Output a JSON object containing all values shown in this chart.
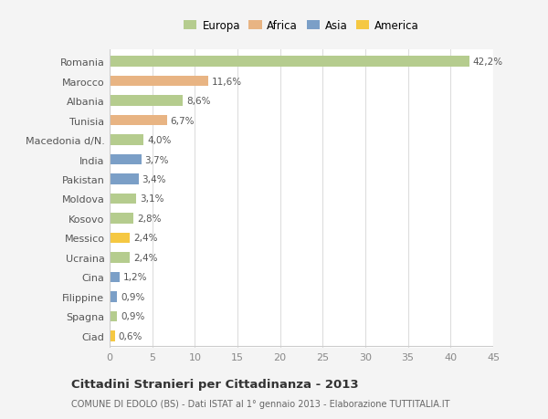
{
  "countries": [
    "Romania",
    "Marocco",
    "Albania",
    "Tunisia",
    "Macedonia d/N.",
    "India",
    "Pakistan",
    "Moldova",
    "Kosovo",
    "Messico",
    "Ucraina",
    "Cina",
    "Filippine",
    "Spagna",
    "Ciad"
  ],
  "values": [
    42.2,
    11.6,
    8.6,
    6.7,
    4.0,
    3.7,
    3.4,
    3.1,
    2.8,
    2.4,
    2.4,
    1.2,
    0.9,
    0.9,
    0.6
  ],
  "labels": [
    "42,2%",
    "11,6%",
    "8,6%",
    "6,7%",
    "4,0%",
    "3,7%",
    "3,4%",
    "3,1%",
    "2,8%",
    "2,4%",
    "2,4%",
    "1,2%",
    "0,9%",
    "0,9%",
    "0,6%"
  ],
  "colors": [
    "#b5cc8e",
    "#e8b483",
    "#b5cc8e",
    "#e8b483",
    "#b5cc8e",
    "#7b9fc7",
    "#7b9fc7",
    "#b5cc8e",
    "#b5cc8e",
    "#f5c842",
    "#b5cc8e",
    "#7b9fc7",
    "#7b9fc7",
    "#b5cc8e",
    "#f5c842"
  ],
  "legend_labels": [
    "Europa",
    "Africa",
    "Asia",
    "America"
  ],
  "legend_colors": [
    "#b5cc8e",
    "#e8b483",
    "#7b9fc7",
    "#f5c842"
  ],
  "title": "Cittadini Stranieri per Cittadinanza - 2013",
  "subtitle": "COMUNE DI EDOLO (BS) - Dati ISTAT al 1° gennaio 2013 - Elaborazione TUTTITALIA.IT",
  "xlim": [
    0,
    45
  ],
  "xticks": [
    0,
    5,
    10,
    15,
    20,
    25,
    30,
    35,
    40,
    45
  ],
  "background_color": "#f4f4f4",
  "plot_background": "#ffffff"
}
